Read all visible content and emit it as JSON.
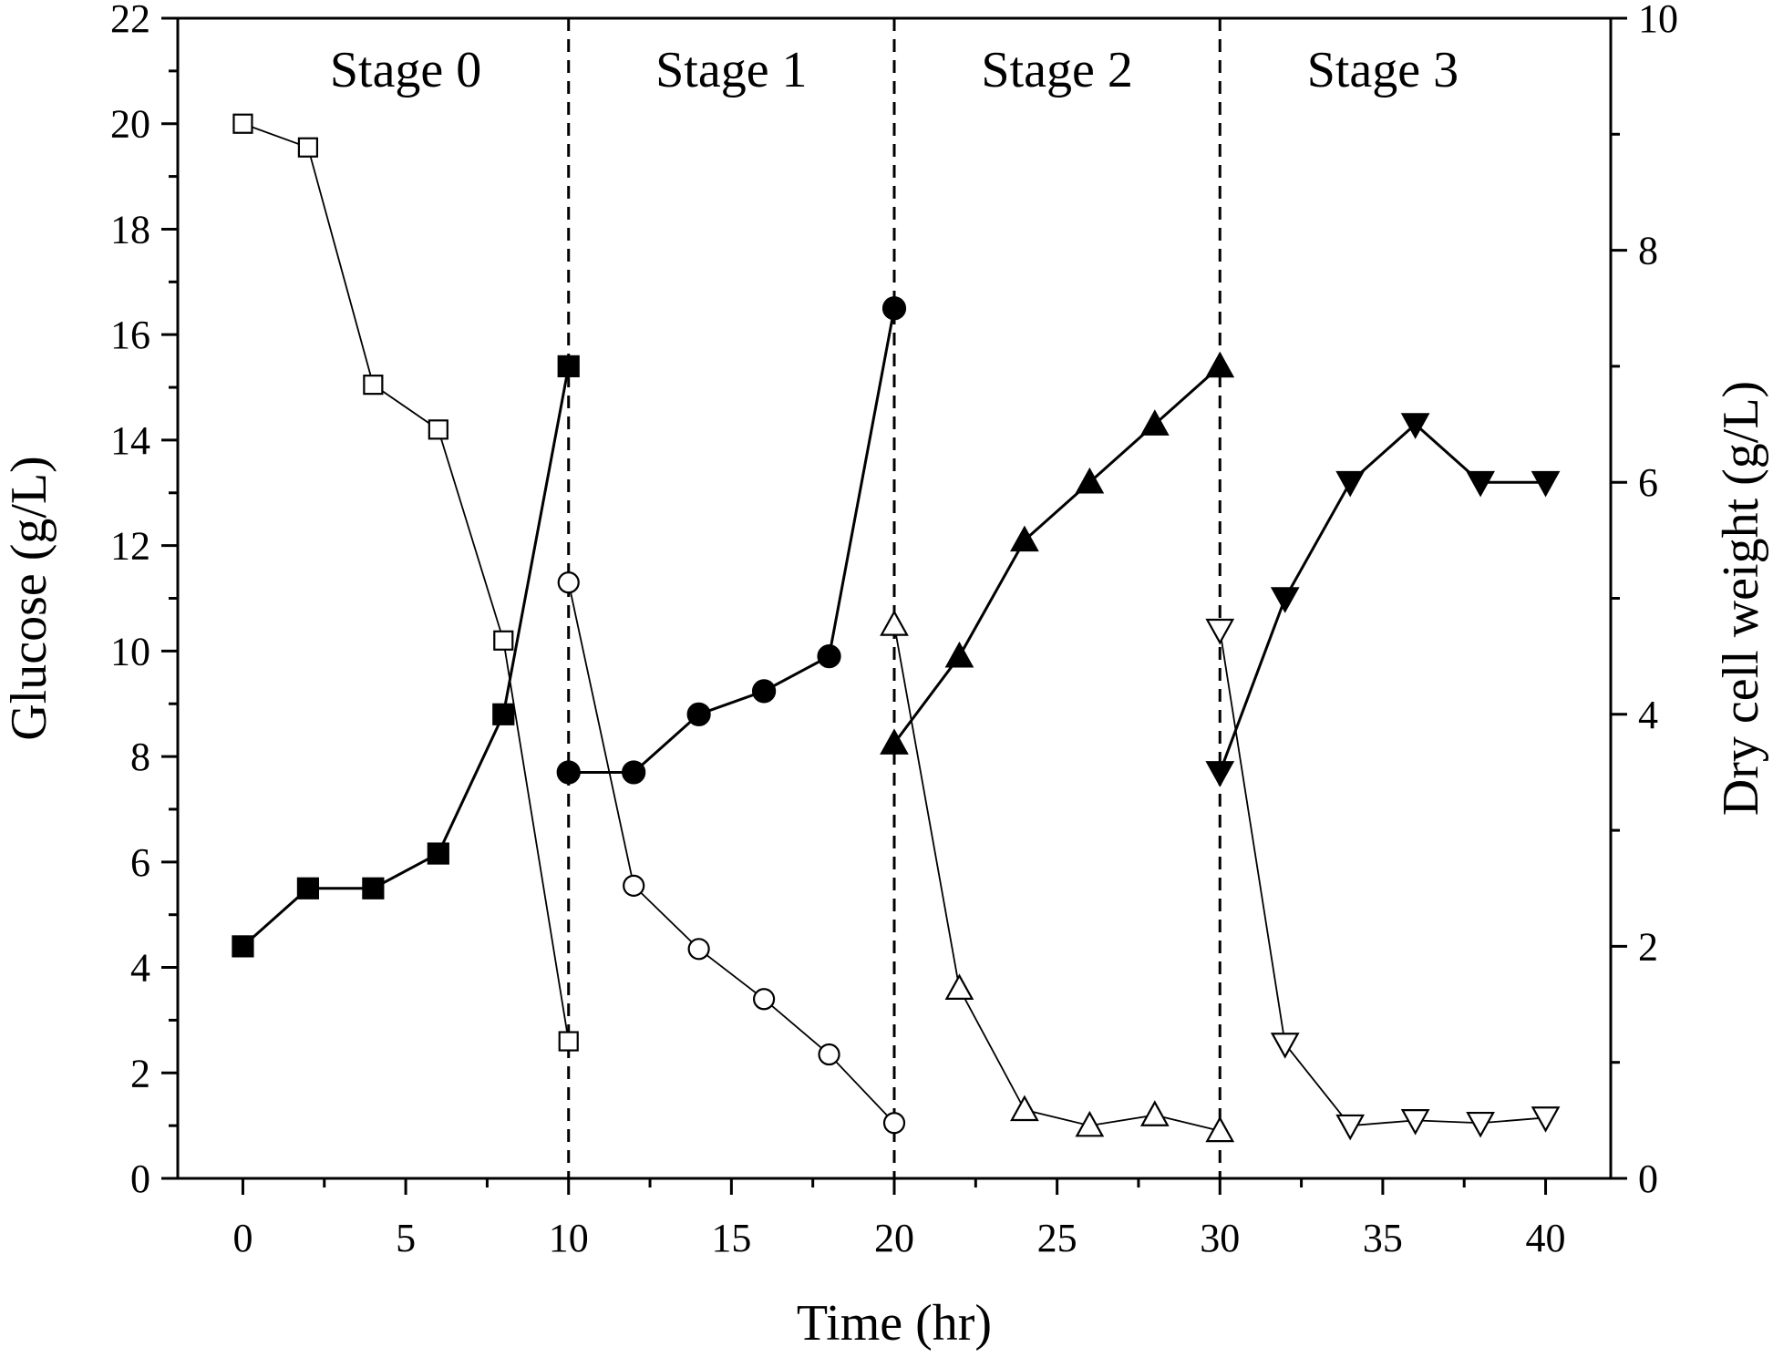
{
  "chart_data": {
    "type": "line",
    "title": "",
    "xlabel": "Time (hr)",
    "ylabel_left": "Glucose (g/L)",
    "ylabel_right": "Dry cell weight (g/L)",
    "xlim": [
      -2,
      42
    ],
    "ylim_left": [
      0,
      22
    ],
    "ylim_right": [
      0,
      10
    ],
    "x_ticks": [
      0,
      5,
      10,
      15,
      20,
      25,
      30,
      35,
      40
    ],
    "y_left_ticks": [
      0,
      2,
      4,
      6,
      8,
      10,
      12,
      14,
      16,
      18,
      20,
      22
    ],
    "y_right_ticks": [
      0,
      2,
      4,
      6,
      8,
      10
    ],
    "grid": false,
    "stage_dividers": [
      10,
      20,
      30
    ],
    "stages": [
      {
        "label": "Stage 0",
        "x_center": 5
      },
      {
        "label": "Stage 1",
        "x_center": 15
      },
      {
        "label": "Stage 2",
        "x_center": 25
      },
      {
        "label": "Stage 3",
        "x_center": 35
      }
    ],
    "series": [
      {
        "axis": "left",
        "marker": "square",
        "filled": false,
        "x": [
          0,
          2,
          4,
          6,
          8,
          10
        ],
        "y": [
          20.0,
          19.55,
          15.05,
          14.2,
          10.2,
          2.6
        ]
      },
      {
        "axis": "right",
        "marker": "square",
        "filled": true,
        "x": [
          0,
          2,
          4,
          6,
          8,
          10
        ],
        "y": [
          2.0,
          2.5,
          2.5,
          2.8,
          4.0,
          7.0
        ]
      },
      {
        "axis": "left",
        "marker": "circle",
        "filled": false,
        "x": [
          10,
          12,
          14,
          16,
          18,
          20
        ],
        "y": [
          11.3,
          5.55,
          4.35,
          3.4,
          2.35,
          1.05
        ]
      },
      {
        "axis": "right",
        "marker": "circle",
        "filled": true,
        "x": [
          10,
          12,
          14,
          16,
          18,
          20
        ],
        "y": [
          3.5,
          3.5,
          4.0,
          4.2,
          4.5,
          7.5
        ]
      },
      {
        "axis": "left",
        "marker": "triangle-up",
        "filled": false,
        "x": [
          20,
          22,
          24,
          26,
          28,
          30
        ],
        "y": [
          10.5,
          3.6,
          1.3,
          1.0,
          1.2,
          0.9
        ]
      },
      {
        "axis": "right",
        "marker": "triangle-up",
        "filled": true,
        "x": [
          20,
          22,
          24,
          26,
          28,
          30
        ],
        "y": [
          3.75,
          4.5,
          5.5,
          6.0,
          6.5,
          7.0
        ]
      },
      {
        "axis": "left",
        "marker": "triangle-down",
        "filled": false,
        "x": [
          30,
          32,
          34,
          36,
          38,
          40
        ],
        "y": [
          10.4,
          2.55,
          1.0,
          1.1,
          1.05,
          1.15
        ]
      },
      {
        "axis": "right",
        "marker": "triangle-down",
        "filled": true,
        "x": [
          30,
          32,
          34,
          36,
          38,
          40
        ],
        "y": [
          3.5,
          5.0,
          6.0,
          6.5,
          6.0,
          6.0
        ]
      }
    ]
  }
}
